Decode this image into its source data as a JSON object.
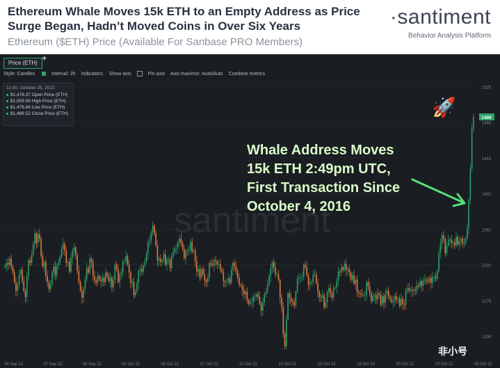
{
  "header": {
    "title": "Ethereum Whale Moves 15k ETH to an Empty Address as Price Surge Began, Hadn’t Moved Coins in Over Six Years",
    "subtitle": "Ethereum ($ETH) Price (Available For Sanbase PRO Members)",
    "brand_name": "santiment",
    "brand_dot": "·",
    "brand_tagline": "Behavior Analysis Platform"
  },
  "toolbar": {
    "tab_label": "Price (ETH)",
    "style": "Style: Candles",
    "interval": "Interval: 2h",
    "indicators": "Indicators:",
    "show_axis": "Show axis",
    "pin_axis": "Pin axis",
    "axis_minmax": "Axis max/min: Auto/Auto",
    "combine": "Combine metrics"
  },
  "info_box": {
    "time": "11:00, October 25, 2022",
    "open": "$1,478.37 Open Price (ETH)",
    "high": "$1,509.99 High Price (ETH)",
    "low": "$1,476.84 Low Price (ETH)",
    "close": "$1,489.52 Close Price (ETH)"
  },
  "annotation": {
    "line1": "Whale Address Moves",
    "line2": "15k ETH 2:49pm UTC,",
    "line3": "First Transaction Since",
    "line4": "October 4, 2016"
  },
  "watermark": "非小号",
  "chart_watermark": "santiment",
  "colors": {
    "background": "#1a1d22",
    "up": "#2ea36a",
    "down": "#e27d3f",
    "annotation": "#d9fdc8",
    "arrow": "#56e07a",
    "grid": "#23272d",
    "axis_text": "#7f8690"
  },
  "chart_data": {
    "type": "candlestick",
    "title": "Price (ETH)",
    "x_ticks": [
      "24 Sep 22",
      "27 Sep 22",
      "30 Sep 22",
      "02 Oct 22",
      "05 Oct 22",
      "07 Oct 22",
      "10 Oct 22",
      "13 Oct 22",
      "15 Oct 22",
      "18 Oct 22",
      "20 Oct 22",
      "23 Oct 22",
      "25 Oct 22"
    ],
    "y_ticks": [
      1525,
      1484,
      1443,
      1402,
      1361,
      1320,
      1279,
      1238
    ],
    "ylim": [
      1210,
      1530
    ],
    "x_range": [
      "24 Sep 22",
      "25 Oct 22"
    ],
    "current_price_label": "1490",
    "series": [
      {
        "name": "Price (ETH)",
        "values": [
          1319,
          1322,
          1320,
          1327,
          1318,
          1311,
          1300,
          1290,
          1297,
          1309,
          1314,
          1301,
          1290,
          1283,
          1307,
          1325,
          1322,
          1331,
          1344,
          1356,
          1345,
          1355,
          1350,
          1330,
          1318,
          1323,
          1307,
          1300,
          1292,
          1297,
          1312,
          1318,
          1308,
          1319,
          1322,
          1329,
          1338,
          1344,
          1336,
          1322,
          1323,
          1312,
          1328,
          1336,
          1340,
          1331,
          1313,
          1300,
          1290,
          1282,
          1292,
          1303,
          1316,
          1311,
          1327,
          1323,
          1307,
          1302,
          1299,
          1307,
          1303,
          1301,
          1305,
          1300,
          1311,
          1307,
          1301,
          1305,
          1294,
          1302,
          1320,
          1315,
          1300,
          1309,
          1311,
          1324,
          1324,
          1330,
          1320,
          1311,
          1299,
          1300,
          1285,
          1289,
          1299,
          1313,
          1315,
          1312,
          1319,
          1323,
          1333,
          1346,
          1348,
          1357,
          1365,
          1356,
          1342,
          1325,
          1327,
          1323,
          1325,
          1332,
          1320,
          1326,
          1326,
          1316,
          1330,
          1334,
          1339,
          1339,
          1346,
          1350,
          1345,
          1338,
          1327,
          1336,
          1336,
          1337,
          1346,
          1335,
          1336,
          1324,
          1312,
          1315,
          1305,
          1315,
          1309,
          1302,
          1300,
          1305,
          1322,
          1320,
          1319,
          1325,
          1324,
          1320,
          1321,
          1314,
          1311,
          1301,
          1300,
          1301,
          1304,
          1299,
          1314,
          1322,
          1318,
          1313,
          1305,
          1297,
          1296,
          1291,
          1286,
          1289,
          1279,
          1275,
          1277,
          1277,
          1283,
          1283,
          1286,
          1283,
          1275,
          1267,
          1277,
          1286,
          1289,
          1297,
          1307,
          1316,
          1323,
          1317,
          1309,
          1309,
          1302,
          1282,
          1271,
          1241,
          1226,
          1257,
          1287,
          1282,
          1278,
          1277,
          1273,
          1289,
          1304,
          1305,
          1306,
          1306,
          1320,
          1317,
          1308,
          1297,
          1300,
          1300,
          1309,
          1309,
          1299,
          1289,
          1283,
          1282,
          1285,
          1271,
          1277,
          1289,
          1293,
          1287,
          1282,
          1293,
          1294,
          1301,
          1312,
          1311,
          1317,
          1314,
          1321,
          1314,
          1315,
          1311,
          1303,
          1308,
          1298,
          1303,
          1289,
          1287,
          1286,
          1285,
          1285,
          1285,
          1300,
          1295,
          1287,
          1278,
          1284,
          1285,
          1280,
          1287,
          1285,
          1274,
          1284,
          1276,
          1286,
          1290,
          1284,
          1280,
          1277,
          1278,
          1284,
          1280,
          1281,
          1273,
          1281,
          1275,
          1274,
          1291,
          1293,
          1290,
          1291,
          1290,
          1291,
          1290,
          1296,
          1295,
          1301,
          1296,
          1302,
          1303,
          1301,
          1300,
          1305,
          1299,
          1306,
          1306,
          1304,
          1313,
          1334,
          1344,
          1354,
          1350,
          1333,
          1342,
          1349,
          1349,
          1345,
          1346,
          1342,
          1352,
          1343,
          1347,
          1350,
          1344,
          1345,
          1350,
          1362,
          1395,
          1431,
          1476,
          1490
        ]
      }
    ]
  }
}
